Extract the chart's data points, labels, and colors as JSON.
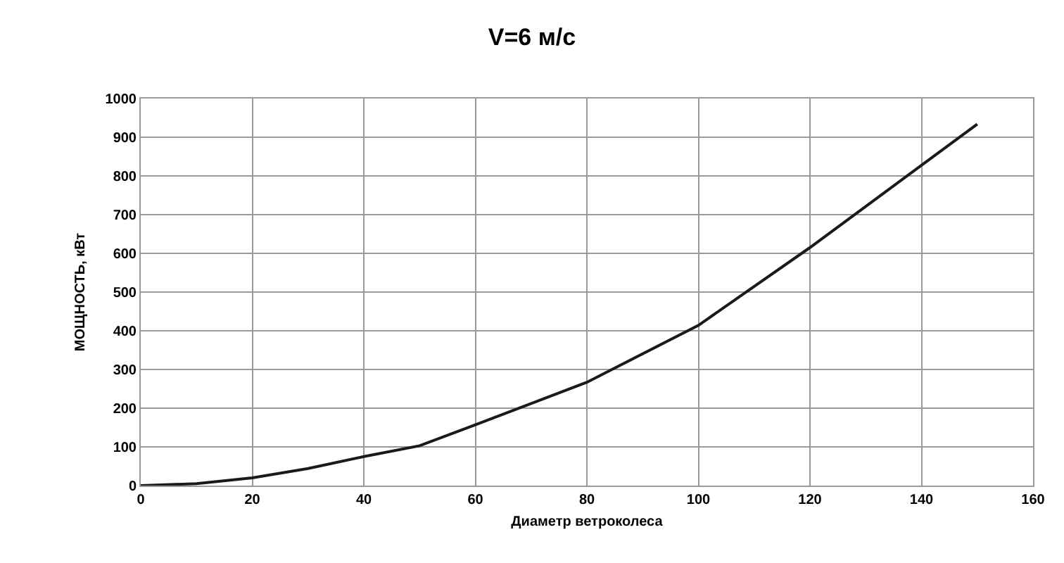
{
  "chart_data": {
    "type": "line",
    "title": "V=6 м/с",
    "xlabel": "Диаметр ветроколеса",
    "ylabel": "МОЩНОСТЬ, кВт",
    "x": [
      0,
      10,
      20,
      30,
      40,
      50,
      60,
      80,
      100,
      120,
      150
    ],
    "series": [
      {
        "color": "#1a1a1a",
        "values": [
          0,
          5,
          20,
          44,
          75,
          103,
          157,
          267,
          414,
          615,
          934
        ]
      }
    ],
    "xlim": [
      0,
      160
    ],
    "xticks": [
      0,
      20,
      40,
      60,
      80,
      100,
      120,
      140,
      160
    ],
    "ylim": [
      0,
      1000
    ],
    "yticks": [
      0,
      100,
      200,
      300,
      400,
      500,
      600,
      700,
      800,
      900,
      1000
    ],
    "grid": true,
    "marker": "none",
    "line_style": "solid"
  }
}
